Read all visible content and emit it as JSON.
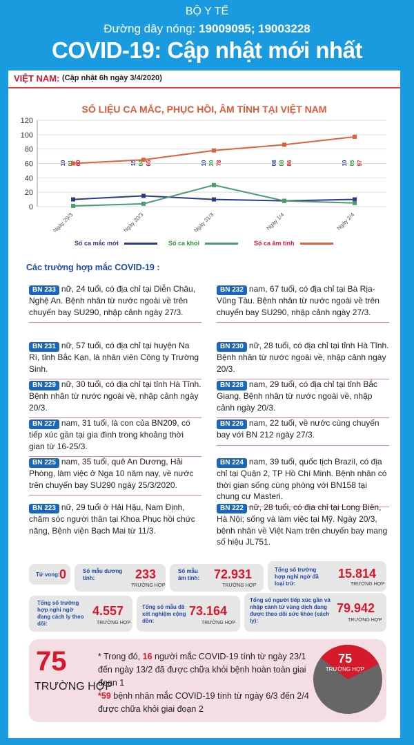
{
  "header": {
    "ministry": "BỘ Y TẾ",
    "hotline_label": "Đường dây nóng:",
    "hotline_numbers": "19009095; 19003228",
    "title": "COVID-19: Cập nhật mới nhất"
  },
  "vn": {
    "label": "VIỆT NAM:",
    "update": "(Cập nhật 6h ngày 3/4/2020)"
  },
  "chart_data": {
    "type": "line",
    "title": "SỐ LIỆU CA MẮC, PHỤC HỒI, ÂM TÍNH TẠI  VIỆT NAM",
    "categories": [
      "Ngày 29/3",
      "Ngày 30/3",
      "Ngày 31/3",
      "Ngày 1/4",
      "Ngày 2/4"
    ],
    "yticks": [
      "0",
      "20",
      "40",
      "60",
      "80",
      "100",
      "120"
    ],
    "ylim": [
      0,
      120
    ],
    "series": [
      {
        "name": "Số ca mắc mới",
        "color": "#2b3a8f",
        "values": [
          10,
          15,
          10,
          8,
          10
        ],
        "labels": [
          "10",
          "15",
          "10",
          "08",
          "10"
        ]
      },
      {
        "name": "Số ca khỏi",
        "color": "#4a9b6f",
        "values": [
          1,
          4,
          30,
          8,
          5
        ],
        "labels": [
          "01",
          "04",
          "30",
          "08",
          "05"
        ]
      },
      {
        "name": "Số ca âm tính",
        "color": "#e0603c",
        "values": [
          60,
          65,
          78,
          86,
          97
        ],
        "labels": [
          "60",
          "65",
          "78",
          "86",
          "97"
        ]
      }
    ]
  },
  "section_title": "Các trường hợp mắc COVID-19 :",
  "cases": [
    {
      "id": "BN 233",
      "text": "nữ, 24 tuổi, có địa chỉ tại Diễn Châu, Nghệ An. Bệnh nhân từ nước ngoài về trên chuyến bay SU290, nhập cảnh ngày 27/3."
    },
    {
      "id": "BN 232",
      "text": "nam, 67 tuổi, có địa chỉ tại Bà Rịa-Vũng Tàu. Bệnh nhân từ nước ngoài về trên chuyến bay SU290, nhập cảnh ngày 27/3."
    },
    {
      "id": "BN 231",
      "text": "nữ, 57 tuổi, có địa chỉ tại huyện Na Rì, tỉnh Bắc Kạn, là nhân viên Công ty Trường Sinh."
    },
    {
      "id": "BN 230",
      "text": "nữ, 28 tuổi, có địa chỉ tại tỉnh Hà Tĩnh. Bệnh nhân từ nước ngoài về, nhập cảnh ngày 20/3."
    },
    {
      "id": "BN 229",
      "text": "nữ, 30 tuổi, có địa chỉ tại tỉnh Hà Tĩnh. Bệnh nhân từ nước ngoài về, nhập cảnh ngày 20/3."
    },
    {
      "id": "BN 228",
      "text": "nam, 29 tuổi, có địa chỉ tại tỉnh Bắc Giang. Bệnh nhân từ nước ngoài về, nhập cảnh ngày 20/3."
    },
    {
      "id": "BN 227",
      "text": "nam,  31 tuổi, là con của BN209,  có tiếp xúc gần tại gia đình trong khoảng thời gian từ 16-25/3."
    },
    {
      "id": "BN 226",
      "text": "nam, 22 tuổi, về nước cùng chuyến bay với BN 212 ngày 27/3."
    },
    {
      "id": "BN 225",
      "text": "nam,   35 tuổi, quê An Dương, Hải Phòng, làm việc ở Nga 10 năm nay, về nước trên chuyến bay SU290 ngày 25/3/2020."
    },
    {
      "id": "BN 224",
      "text": "nam, 39 tuổi, quốc tịch Brazil, có địa chỉ tại Quận 2, TP Hồ Chí Minh. Bệnh nhân có thời gian sống cùng phòng với BN158 tại chung cư Masteri."
    },
    {
      "id": "BN 223",
      "text": "nữ, 29 tuổi ở Hải Hậu, Nam Định, chăm sóc người thân tại Khoa Phục hồi chức năng, Bệnh viện Bạch Mai từ 11/3."
    },
    {
      "id": "BN 222",
      "text": "nữ, 28 tuổi, có địa chỉ tại Long Biên, Hà Nội; sống và làm việc tại Mỹ. Ngày 20/3, bệnh nhân về Việt Nam trên chuyến bay mang số hiệu JL751."
    }
  ],
  "stats": {
    "deaths": {
      "label": "Tử vong:",
      "value": "0"
    },
    "positive": {
      "label": "Số mẫu dương tính:",
      "value": "233",
      "unit": "TRƯỜNG HỢP"
    },
    "negative": {
      "label": "Số mẫu âm tính:",
      "value": "72.931",
      "unit": "TRƯỜNG HỢP"
    },
    "suspected": {
      "label": "Tổng số trường hợp nghi ngờ đã loại trừ:",
      "value": "15.814",
      "unit": "TRƯỜNG HỢP"
    },
    "isolated": {
      "label": "Tổng số trường hợp nghi ngờ đang cách ly theo dõi:",
      "value": "4.557",
      "unit": "TRƯỜNG HỢP"
    },
    "tested": {
      "label": "Tổng số mẫu đã xét nghiệm cộng dồn:",
      "value": "73.164",
      "unit": "TRƯỜNG HỢP"
    },
    "contacts": {
      "label": "Tổng số người tiếp xúc gần và nhập cảnh từ vùng dịch đang được theo dõi sức khỏe (cách ly):",
      "value": "79.942",
      "unit": "TRƯỜNG HỢP"
    }
  },
  "recovered": {
    "number": "75",
    "unit": "TRƯỜNG HỢP",
    "line1_prefix": "* Trong đó,",
    "line1_num": "16",
    "line1_text": "người mắc COVID-19 tính từ ngày 23/1 đến ngày 13/2 đã được chữa  khỏi bệnh hoàn toàn giai đoạn 1",
    "line2_num": "*59",
    "line2_text": "bệnh nhân mắc COVID-19 tính từ ngày 6/3 đến 2/4 được chữa khỏi giai đoạn 2",
    "pie_number": "75",
    "pie_unit": "TRƯỜNG HỢP",
    "pie_fraction": 0.32
  },
  "colors": {
    "brand_blue": "#1a9be0",
    "red": "#d7192c"
  }
}
